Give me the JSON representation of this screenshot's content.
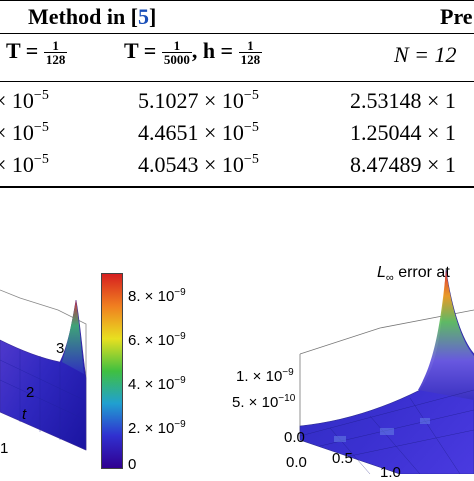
{
  "table": {
    "top_header": {
      "method_prefix": "Method in [",
      "method_ref": "5",
      "method_suffix": "]",
      "present_fragment": "Pre"
    },
    "column_headers": {
      "col1_prefix": "T =",
      "col1_num": "1",
      "col1_den": "128",
      "col2_prefix": "T =",
      "col2_num": "1",
      "col2_den": "5000",
      "col2_mid": ", h =",
      "col2_h_num": "1",
      "col2_h_den": "128",
      "col3_prefix": "N = 12"
    },
    "rows": [
      {
        "col1": "× 10",
        "col1_exp": "−5",
        "col2": "5.1027 × 10",
        "col2_exp": "−5",
        "col3": "2.53148 × 1"
      },
      {
        "col1": "× 10",
        "col1_exp": "−5",
        "col2": "4.4651 × 10",
        "col2_exp": "−5",
        "col3": "1.25044 × 1"
      },
      {
        "col1": "× 10",
        "col1_exp": "−5",
        "col2": "4.0543 × 10",
        "col2_exp": "−5",
        "col3": "8.47489 × 1"
      }
    ]
  },
  "left_plot": {
    "axis_label_t": "t",
    "ticks": [
      "3",
      "2",
      "1"
    ]
  },
  "colorbar": {
    "labels": [
      "8. × 10",
      "6. × 10",
      "4. × 10",
      "2. × 10",
      "0"
    ],
    "exps": [
      "−9",
      "−9",
      "−9",
      "−9",
      ""
    ],
    "colors": [
      "#d62020",
      "#f08020",
      "#e8e020",
      "#40c040",
      "#20a0d0",
      "#3030d0",
      "#300090"
    ]
  },
  "right_plot": {
    "title_main": "L",
    "title_sub": "∞",
    "title_rest": " error at",
    "z_ticks": [
      "1. × 10",
      "5. × 10",
      "0.0"
    ],
    "z_exps": [
      "−9",
      "−10",
      ""
    ],
    "x_ticks": [
      "0.0",
      "0.5",
      "1.0"
    ]
  }
}
